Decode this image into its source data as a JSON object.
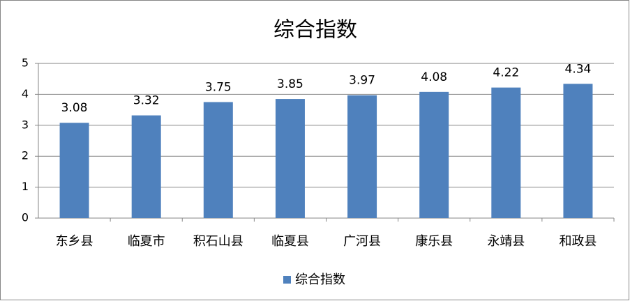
{
  "chart_data": {
    "type": "bar",
    "title": "综合指数",
    "categories": [
      "东乡县",
      "临夏市",
      "积石山县",
      "临夏县",
      "广河县",
      "康乐县",
      "永靖县",
      "和政县"
    ],
    "series": [
      {
        "name": "综合指数",
        "color": "#4f81bd",
        "values": [
          3.08,
          3.32,
          3.75,
          3.85,
          3.97,
          4.08,
          4.22,
          4.34
        ]
      }
    ],
    "ylim": [
      0,
      5
    ],
    "yticks": [
      0,
      1,
      2,
      3,
      4,
      5
    ],
    "grid": true,
    "legend": "bottom"
  }
}
